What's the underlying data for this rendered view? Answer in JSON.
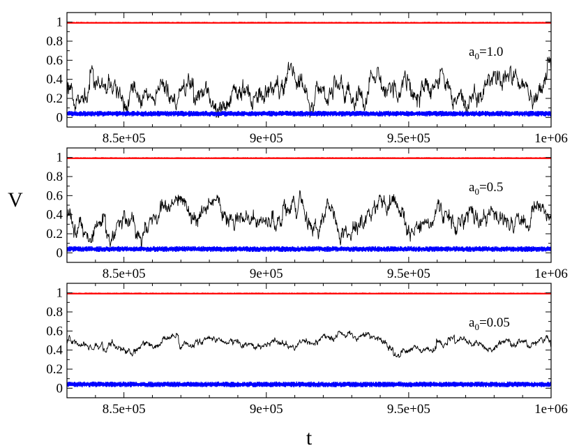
{
  "figure": {
    "ylabel": "V",
    "xlabel": "t"
  },
  "chart_data": [
    {
      "type": "line",
      "annotation": {
        "base": "a",
        "sub": "0",
        "rest": "=1.0"
      },
      "xlim": [
        830000,
        1000000
      ],
      "ylim": [
        -0.1,
        1.1
      ],
      "x_ticks": [
        850000,
        900000,
        950000,
        1000000
      ],
      "x_tick_labels": [
        "8.5e+05",
        "9e+05",
        "9.5e+05",
        "1e+06"
      ],
      "y_ticks": [
        0,
        0.2,
        0.4,
        0.6,
        0.8,
        1
      ],
      "y_tick_labels": [
        "0",
        "0.2",
        "0.4",
        "0.6",
        "0.8",
        "1"
      ],
      "series": [
        {
          "color": "#ff0000",
          "style": "thick-band",
          "level": 0.995,
          "spread": 0.008,
          "seed": 11
        },
        {
          "color": "#000000",
          "style": "fluctuating",
          "mean": 0.32,
          "amp": 0.3,
          "min": 0.0,
          "max": 0.72,
          "seed": 101,
          "points": 1200
        },
        {
          "color": "#0000ff",
          "style": "thick-band",
          "level": 0.04,
          "spread": 0.03,
          "seed": 21
        }
      ]
    },
    {
      "type": "line",
      "annotation": {
        "base": "a",
        "sub": "0",
        "rest": "=0.5"
      },
      "xlim": [
        830000,
        1000000
      ],
      "ylim": [
        -0.1,
        1.1
      ],
      "x_ticks": [
        850000,
        900000,
        950000,
        1000000
      ],
      "x_tick_labels": [
        "8.5e+05",
        "9e+05",
        "9.5e+05",
        "1e+06"
      ],
      "y_ticks": [
        0,
        0.2,
        0.4,
        0.6,
        0.8,
        1
      ],
      "y_tick_labels": [
        "0",
        "0.2",
        "0.4",
        "0.6",
        "0.8",
        "1"
      ],
      "series": [
        {
          "color": "#ff0000",
          "style": "thick-band",
          "level": 0.995,
          "spread": 0.008,
          "seed": 12
        },
        {
          "color": "#000000",
          "style": "fluctuating",
          "mean": 0.38,
          "amp": 0.27,
          "min": 0.0,
          "max": 0.72,
          "seed": 202,
          "points": 1200
        },
        {
          "color": "#0000ff",
          "style": "thick-band",
          "level": 0.04,
          "spread": 0.03,
          "seed": 22
        }
      ]
    },
    {
      "type": "line",
      "annotation": {
        "base": "a",
        "sub": "0",
        "rest": "=0.05"
      },
      "xlim": [
        830000,
        1000000
      ],
      "ylim": [
        -0.1,
        1.1
      ],
      "x_ticks": [
        850000,
        900000,
        950000,
        1000000
      ],
      "x_tick_labels": [
        "8.5e+05",
        "9e+05",
        "9.5e+05",
        "1e+06"
      ],
      "y_ticks": [
        0,
        0.2,
        0.4,
        0.6,
        0.8,
        1
      ],
      "y_tick_labels": [
        "0",
        "0.2",
        "0.4",
        "0.6",
        "0.8",
        "1"
      ],
      "series": [
        {
          "color": "#ff0000",
          "style": "thick-band",
          "level": 0.995,
          "spread": 0.008,
          "seed": 13
        },
        {
          "color": "#000000",
          "style": "fluctuating",
          "mean": 0.48,
          "amp": 0.1,
          "min": 0.1,
          "max": 0.67,
          "seed": 303,
          "points": 1200
        },
        {
          "color": "#0000ff",
          "style": "thick-band",
          "level": 0.04,
          "spread": 0.03,
          "seed": 23
        }
      ]
    }
  ]
}
